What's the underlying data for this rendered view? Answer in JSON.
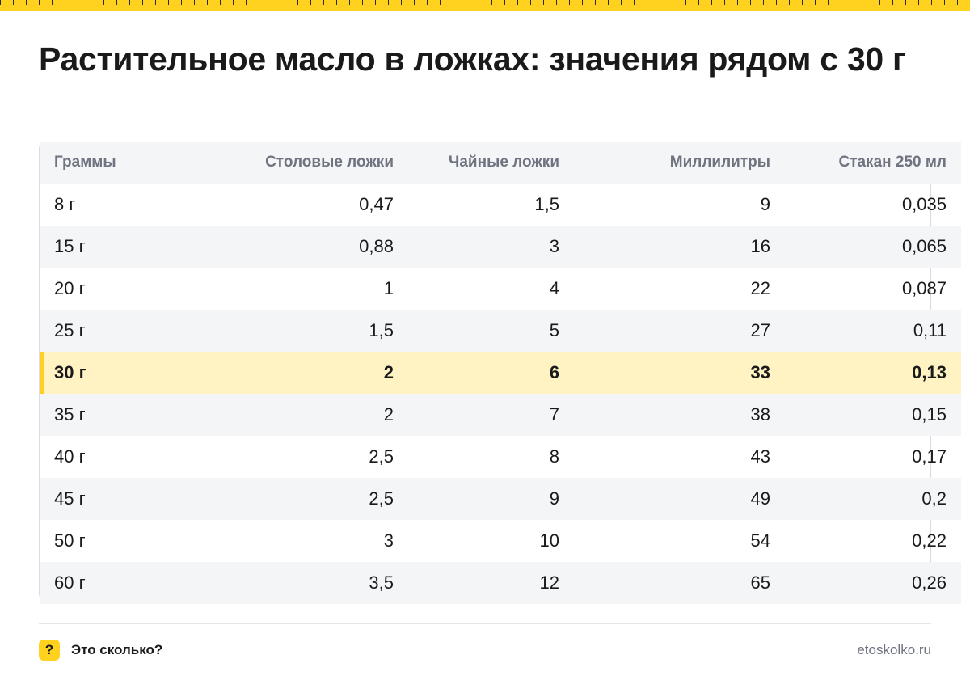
{
  "title": "Растительное масло в ложках: значения рядом с 30 г",
  "table": {
    "headers": [
      "Граммы",
      "Столовые ложки",
      "Чайные ложки",
      "Миллилитры",
      "Стакан 250 мл"
    ],
    "rows": [
      [
        "8 г",
        "0,47",
        "1,5",
        "9",
        "0,035"
      ],
      [
        "15 г",
        "0,88",
        "3",
        "16",
        "0,065"
      ],
      [
        "20 г",
        "1",
        "4",
        "22",
        "0,087"
      ],
      [
        "25 г",
        "1,5",
        "5",
        "27",
        "0,11"
      ],
      [
        "30 г",
        "2",
        "6",
        "33",
        "0,13"
      ],
      [
        "35 г",
        "2",
        "7",
        "38",
        "0,15"
      ],
      [
        "40 г",
        "2,5",
        "8",
        "43",
        "0,17"
      ],
      [
        "45 г",
        "2,5",
        "9",
        "49",
        "0,2"
      ],
      [
        "50 г",
        "3",
        "10",
        "54",
        "0,22"
      ],
      [
        "60 г",
        "3,5",
        "12",
        "65",
        "0,26"
      ]
    ],
    "highlighted_row": 4
  },
  "footer": {
    "badge_icon": "question-mark-icon",
    "badge_symbol": "?",
    "brand": "Это сколько?",
    "site": "etoskolko.ru"
  },
  "colors": {
    "accent": "#ffd21f",
    "highlight_row": "#fff3c4",
    "highlight_marker": "#ffcf24",
    "header_bg": "#f4f5f7",
    "muted_text": "#6f7480"
  }
}
